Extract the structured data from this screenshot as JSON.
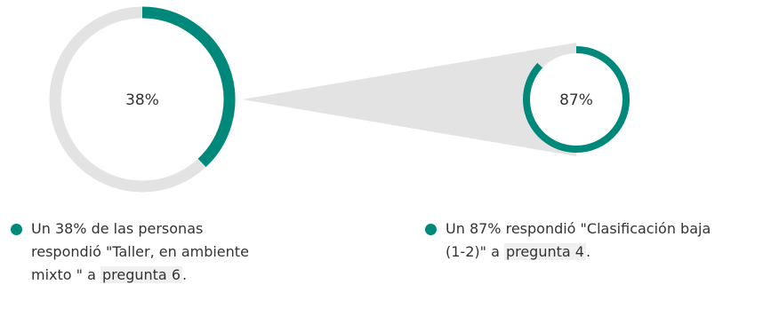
{
  "colors": {
    "accent": "#00897b",
    "track": "#e3e3e3",
    "connector": "#e3e3e3"
  },
  "chart_data": [
    {
      "type": "pie",
      "variant": "donut",
      "values": [
        38,
        62
      ],
      "center_label": "38%",
      "legend": {
        "text_before": "Un 38% de las personas respondió \"Taller, en ambiente mixto \" a ",
        "link_text": "pregunta 6",
        "text_after": "."
      }
    },
    {
      "type": "pie",
      "variant": "donut",
      "values": [
        87,
        13
      ],
      "center_label": "87%",
      "legend": {
        "text_before": "Un 87% respondió \"Clasificación baja (1-2)\" a ",
        "link_text": "pregunta 4",
        "text_after": "."
      }
    }
  ]
}
